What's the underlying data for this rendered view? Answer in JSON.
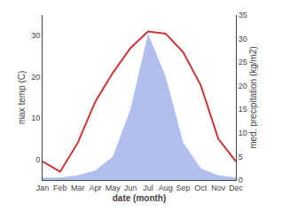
{
  "chart_data": {
    "type": "line",
    "categories": [
      "Jan",
      "Feb",
      "Mar",
      "Apr",
      "May",
      "Jun",
      "Jul",
      "Aug",
      "Sep",
      "Oct",
      "Nov",
      "Dec"
    ],
    "xlabel": "date (month)",
    "ylabel": "max temp (C)",
    "y2label": "med. precipitation (kg/m2)",
    "series": [
      {
        "type": "area",
        "axis": "y2",
        "color": "#b0bfee",
        "values": [
          0.5,
          0.5,
          1.0,
          2.0,
          5.0,
          15.0,
          31.0,
          22.0,
          8.0,
          2.5,
          1.0,
          0.5
        ]
      },
      {
        "type": "line",
        "color": "#cc3333",
        "values": [
          -0.5,
          -3.0,
          4.0,
          14.0,
          21.0,
          27.0,
          31.0,
          30.5,
          26.0,
          18.0,
          5.0,
          -0.5
        ]
      }
    ],
    "ylim": [
      -5,
      35
    ],
    "yticks": [
      0,
      10,
      20,
      30
    ],
    "y2lim": [
      0,
      35
    ],
    "y2ticks": [
      0,
      5,
      10,
      15,
      20,
      25,
      30,
      35
    ],
    "grid": false
  }
}
